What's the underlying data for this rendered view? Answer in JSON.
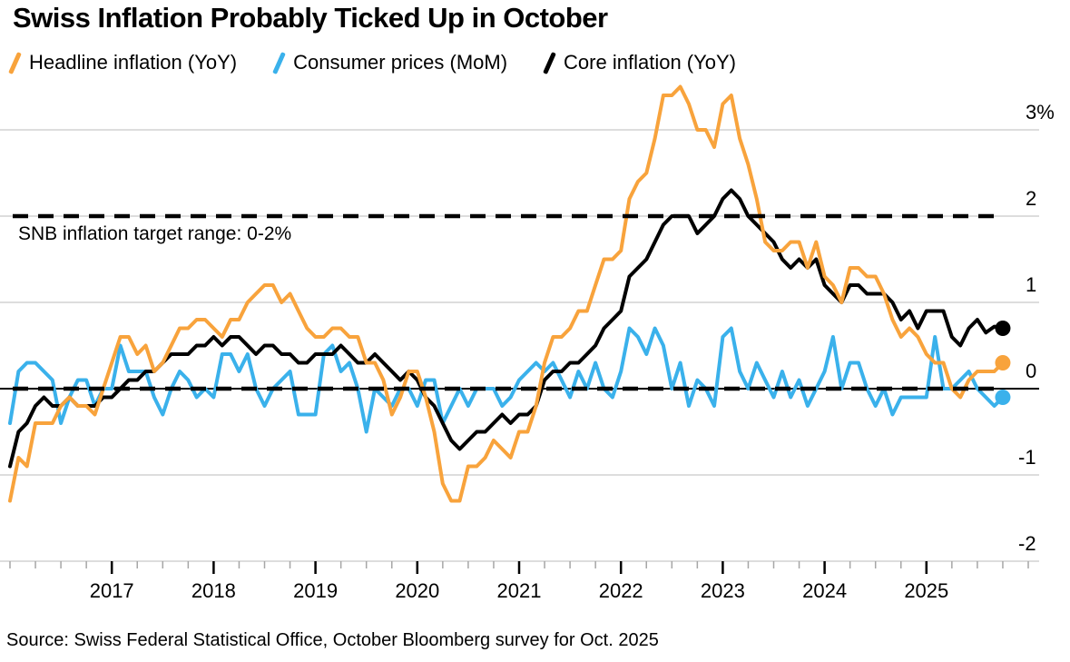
{
  "header": {
    "title": "Swiss Inflation Probably Ticked Up in October"
  },
  "legend": {
    "items": [
      {
        "label": "Headline inflation (YoY)",
        "color": "#F8A33C"
      },
      {
        "label": "Consumer prices (MoM)",
        "color": "#3AB1EB"
      },
      {
        "label": "Core inflation (YoY)",
        "color": "#000000"
      }
    ]
  },
  "annotation": {
    "text": "SNB inflation target range: 0-2%"
  },
  "source": {
    "text": "Source: Swiss Federal Statistical Office, October Bloomberg survey for Oct. 2025"
  },
  "colors": {
    "grid": "#D2D2D2",
    "zero_line": "#000000",
    "tick_minor": "#A6A6A6",
    "tick_major": "#000000",
    "background": "#FFFFFF"
  },
  "chart_data": {
    "type": "line",
    "title": "Swiss Inflation Probably Ticked Up in October",
    "frequency": "monthly",
    "x_start": "2016-01",
    "x_end": "2025-10",
    "x_tick_years": [
      "2017",
      "2018",
      "2019",
      "2020",
      "2021",
      "2022",
      "2023",
      "2024",
      "2025"
    ],
    "y_ticks": [
      {
        "value": 3,
        "label": "3%"
      },
      {
        "value": 2,
        "label": "2"
      },
      {
        "value": 1,
        "label": "1"
      },
      {
        "value": 0,
        "label": "0"
      },
      {
        "value": -1,
        "label": "-1"
      },
      {
        "value": -2,
        "label": "-2"
      }
    ],
    "ylim": [
      -2,
      3.5
    ],
    "grid": true,
    "legend_position": "top",
    "target_lines": [
      {
        "value": 2,
        "style": "dashed"
      },
      {
        "value": 0,
        "style": "dashed"
      },
      {
        "value": 0,
        "style": "solid"
      }
    ],
    "series": [
      {
        "name": "Headline inflation (YoY)",
        "color": "#F8A33C",
        "end_dot": true,
        "values": [
          -1.3,
          -0.8,
          -0.9,
          -0.4,
          -0.4,
          -0.4,
          -0.2,
          -0.1,
          -0.2,
          -0.2,
          -0.3,
          0.0,
          0.3,
          0.6,
          0.6,
          0.4,
          0.5,
          0.2,
          0.3,
          0.5,
          0.7,
          0.7,
          0.8,
          0.8,
          0.7,
          0.6,
          0.8,
          0.8,
          1.0,
          1.1,
          1.2,
          1.2,
          1.0,
          1.1,
          0.9,
          0.7,
          0.6,
          0.6,
          0.7,
          0.7,
          0.6,
          0.6,
          0.3,
          0.3,
          0.1,
          -0.3,
          -0.1,
          0.2,
          0.2,
          -0.1,
          -0.5,
          -1.1,
          -1.3,
          -1.3,
          -0.9,
          -0.9,
          -0.8,
          -0.6,
          -0.7,
          -0.8,
          -0.5,
          -0.5,
          -0.2,
          0.3,
          0.6,
          0.6,
          0.7,
          0.9,
          0.9,
          1.2,
          1.5,
          1.5,
          1.6,
          2.2,
          2.4,
          2.5,
          2.9,
          3.4,
          3.4,
          3.5,
          3.3,
          3.0,
          3.0,
          2.8,
          3.3,
          3.4,
          2.9,
          2.6,
          2.2,
          1.7,
          1.6,
          1.6,
          1.7,
          1.7,
          1.4,
          1.7,
          1.3,
          1.2,
          1.0,
          1.4,
          1.4,
          1.3,
          1.3,
          1.1,
          0.8,
          0.6,
          0.7,
          0.6,
          0.4,
          0.3,
          0.3,
          0.0,
          -0.1,
          0.1,
          0.2,
          0.2,
          0.2,
          0.3
        ]
      },
      {
        "name": "Consumer prices (MoM)",
        "color": "#3AB1EB",
        "end_dot": true,
        "values": [
          -0.4,
          0.2,
          0.3,
          0.3,
          0.2,
          0.1,
          -0.4,
          -0.1,
          0.1,
          0.1,
          -0.2,
          0.0,
          0.0,
          0.5,
          0.2,
          0.2,
          0.2,
          -0.1,
          -0.3,
          0.0,
          0.2,
          0.1,
          -0.1,
          0.0,
          -0.1,
          0.4,
          0.4,
          0.2,
          0.4,
          0.0,
          -0.2,
          0.0,
          0.1,
          0.2,
          -0.3,
          -0.3,
          -0.3,
          0.4,
          0.5,
          0.2,
          0.3,
          0.0,
          -0.5,
          0.0,
          -0.1,
          -0.2,
          0.0,
          0.0,
          -0.2,
          0.1,
          0.1,
          -0.4,
          -0.2,
          0.0,
          -0.2,
          0.0,
          0.0,
          0.0,
          -0.2,
          -0.1,
          0.1,
          0.2,
          0.3,
          0.2,
          0.3,
          0.1,
          -0.1,
          0.2,
          0.0,
          0.3,
          0.0,
          -0.1,
          0.2,
          0.7,
          0.6,
          0.4,
          0.7,
          0.5,
          0.0,
          0.3,
          -0.2,
          0.1,
          0.0,
          -0.2,
          0.6,
          0.7,
          0.2,
          0.0,
          0.3,
          0.1,
          -0.1,
          0.2,
          -0.1,
          0.1,
          -0.2,
          0.0,
          0.2,
          0.6,
          0.0,
          0.3,
          0.3,
          0.0,
          -0.2,
          0.0,
          -0.3,
          -0.1,
          -0.1,
          -0.1,
          -0.1,
          0.6,
          0.0,
          0.0,
          0.1,
          0.2,
          0.0,
          -0.1,
          -0.2,
          -0.1
        ]
      },
      {
        "name": "Core inflation (YoY)",
        "color": "#000000",
        "end_dot": true,
        "values": [
          -0.9,
          -0.5,
          -0.4,
          -0.2,
          -0.1,
          -0.2,
          -0.2,
          -0.1,
          -0.2,
          -0.2,
          -0.2,
          -0.1,
          -0.1,
          0.0,
          0.1,
          0.1,
          0.2,
          0.2,
          0.3,
          0.4,
          0.4,
          0.4,
          0.5,
          0.5,
          0.6,
          0.5,
          0.6,
          0.6,
          0.5,
          0.4,
          0.5,
          0.5,
          0.4,
          0.4,
          0.3,
          0.3,
          0.4,
          0.4,
          0.4,
          0.5,
          0.4,
          0.3,
          0.3,
          0.4,
          0.3,
          0.2,
          0.1,
          0.2,
          0.1,
          -0.1,
          -0.2,
          -0.4,
          -0.6,
          -0.7,
          -0.6,
          -0.5,
          -0.5,
          -0.4,
          -0.3,
          -0.4,
          -0.3,
          -0.3,
          -0.2,
          0.1,
          0.2,
          0.2,
          0.3,
          0.3,
          0.4,
          0.5,
          0.7,
          0.8,
          0.9,
          1.3,
          1.4,
          1.5,
          1.7,
          1.9,
          2.0,
          2.0,
          2.0,
          1.8,
          1.9,
          2.0,
          2.2,
          2.3,
          2.2,
          2.0,
          1.9,
          1.8,
          1.7,
          1.5,
          1.4,
          1.5,
          1.4,
          1.5,
          1.2,
          1.1,
          1.0,
          1.2,
          1.2,
          1.1,
          1.1,
          1.1,
          1.0,
          0.8,
          0.9,
          0.7,
          0.9,
          0.9,
          0.9,
          0.6,
          0.5,
          0.7,
          0.8,
          0.65,
          0.72,
          0.7
        ]
      }
    ]
  }
}
